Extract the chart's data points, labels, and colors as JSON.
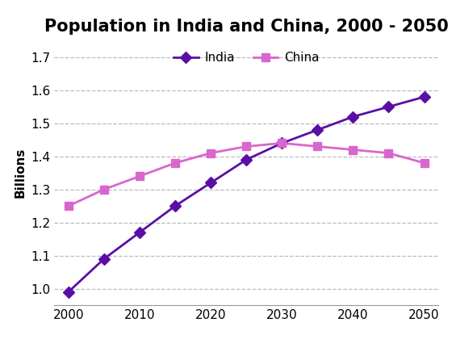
{
  "title": "Population in India and China, 2000 - 2050",
  "ylabel": "Billions",
  "years": [
    2000,
    2005,
    2010,
    2015,
    2020,
    2025,
    2030,
    2035,
    2040,
    2045,
    2050
  ],
  "india": [
    0.99,
    1.09,
    1.17,
    1.25,
    1.32,
    1.39,
    1.44,
    1.48,
    1.52,
    1.55,
    1.58
  ],
  "china": [
    1.25,
    1.3,
    1.34,
    1.38,
    1.41,
    1.43,
    1.44,
    1.43,
    1.42,
    1.41,
    1.38
  ],
  "india_color": "#5b0ea6",
  "china_color": "#d966cc",
  "india_marker": "D",
  "china_marker": "s",
  "ylim": [
    0.95,
    1.75
  ],
  "yticks": [
    1.0,
    1.1,
    1.2,
    1.3,
    1.4,
    1.5,
    1.6,
    1.7
  ],
  "xticks": [
    2000,
    2005,
    2010,
    2015,
    2020,
    2025,
    2030,
    2035,
    2040,
    2045,
    2050
  ],
  "xtick_labels": [
    "2000",
    "",
    "2010",
    "",
    "2020",
    "",
    "2030",
    "",
    "2040",
    "",
    "2050"
  ],
  "grid_color": "#aaaaaa",
  "background_color": "#ffffff",
  "title_fontsize": 15,
  "label_fontsize": 11,
  "tick_fontsize": 11,
  "legend_fontsize": 11,
  "linewidth": 2.0,
  "markersize": 7
}
